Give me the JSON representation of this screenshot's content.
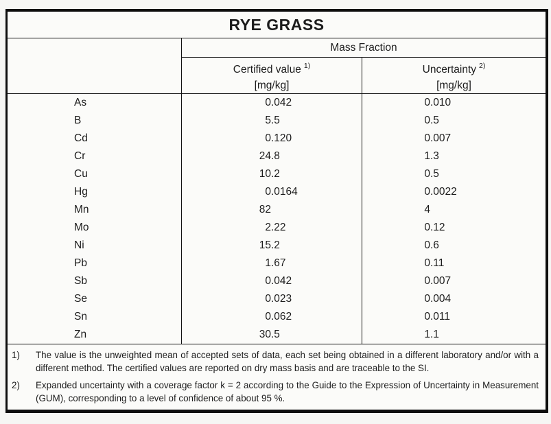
{
  "page": {
    "background": "#f6f6f4",
    "border_color": "#0d0d0d"
  },
  "title": "RYE GRASS",
  "table": {
    "group_header": "Mass Fraction",
    "columns": [
      {
        "label": "Certified value",
        "ref": "1)",
        "unit": "[mg/kg]"
      },
      {
        "label": "Uncertainty",
        "ref": "2)",
        "unit": "[mg/kg]"
      }
    ],
    "rows": [
      {
        "element": "As",
        "certified_value": "0.042",
        "uncertainty": "0.010"
      },
      {
        "element": "B",
        "certified_value": "5.5",
        "uncertainty": "0.5"
      },
      {
        "element": "Cd",
        "certified_value": "0.120",
        "uncertainty": "0.007"
      },
      {
        "element": "Cr",
        "certified_value": "24.8",
        "uncertainty": "1.3"
      },
      {
        "element": "Cu",
        "certified_value": "10.2",
        "uncertainty": "0.5"
      },
      {
        "element": "Hg",
        "certified_value": "0.0164",
        "uncertainty": "0.0022"
      },
      {
        "element": "Mn",
        "certified_value": "82",
        "uncertainty": "4"
      },
      {
        "element": "Mo",
        "certified_value": "2.22",
        "uncertainty": "0.12"
      },
      {
        "element": "Ni",
        "certified_value": "15.2",
        "uncertainty": "0.6"
      },
      {
        "element": "Pb",
        "certified_value": "1.67",
        "uncertainty": "0.11"
      },
      {
        "element": "Sb",
        "certified_value": "0.042",
        "uncertainty": "0.007"
      },
      {
        "element": "Se",
        "certified_value": "0.023",
        "uncertainty": "0.004"
      },
      {
        "element": "Sn",
        "certified_value": "0.062",
        "uncertainty": "0.011"
      },
      {
        "element": "Zn",
        "certified_value": "30.5",
        "uncertainty": "1.1"
      }
    ]
  },
  "footnotes": [
    {
      "marker": "1)",
      "text": "The value is the unweighted mean of accepted sets of data, each set being obtained in a different laboratory and/or with a different method. The certified values are reported on dry mass basis and are traceable to the SI."
    },
    {
      "marker": "2)",
      "text": "Expanded uncertainty with a coverage factor k = 2 according to the Guide to the Expression of Uncertainty in Measurement (GUM), corresponding to a level of confidence of about 95 %."
    }
  ]
}
